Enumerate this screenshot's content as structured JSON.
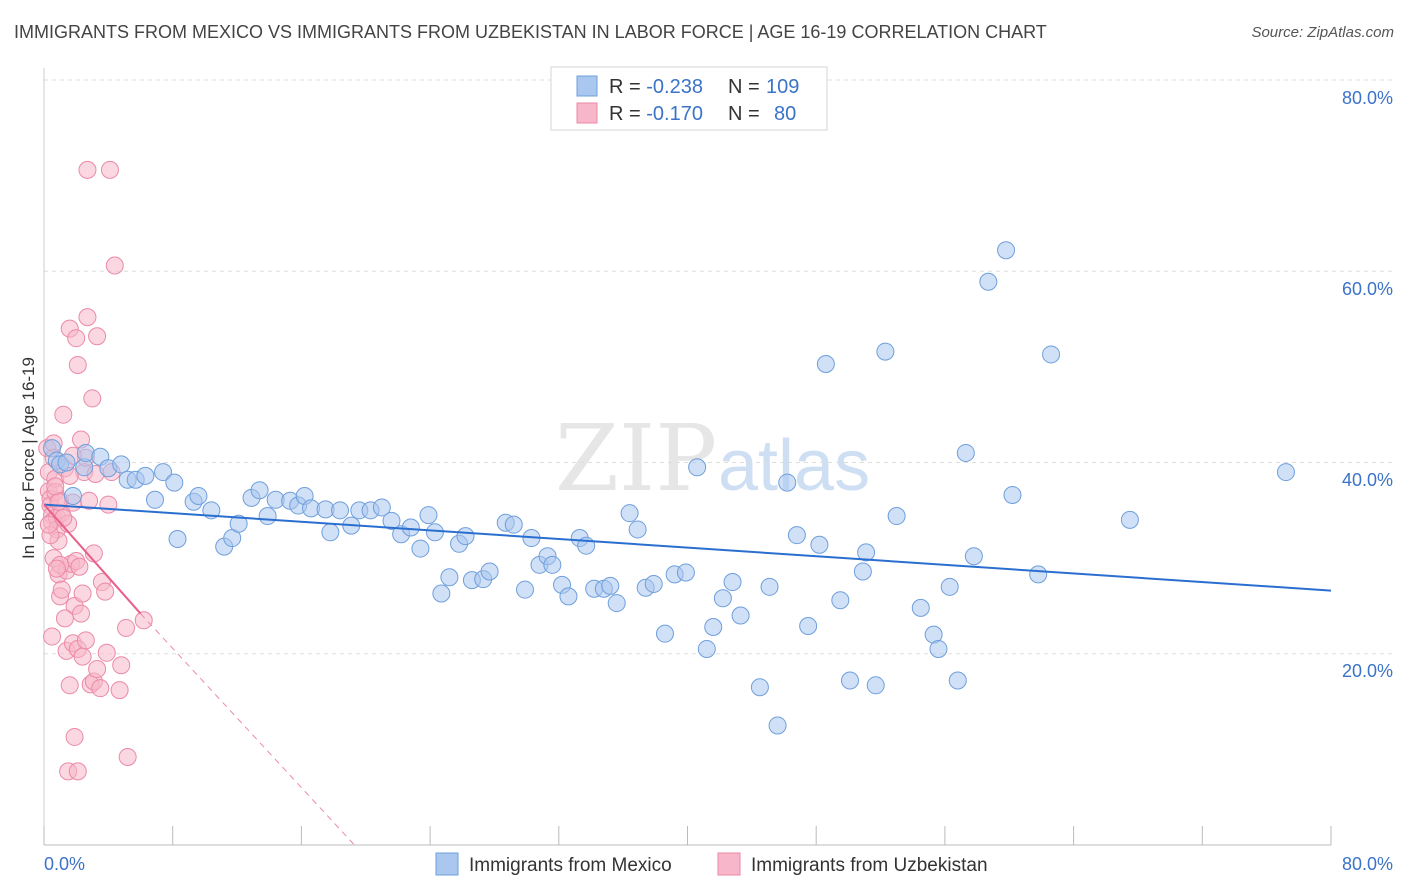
{
  "header": {
    "title": "IMMIGRANTS FROM MEXICO VS IMMIGRANTS FROM UZBEKISTAN IN LABOR FORCE | AGE 16-19 CORRELATION CHART",
    "source": "Source: ZipAtlas.com"
  },
  "watermark": {
    "zip": "ZIP",
    "atlas": "atlas"
  },
  "legend": {
    "rows": [
      {
        "r_label": "R = ",
        "r_value": "-0.238",
        "n_label": "N = ",
        "n_value": "109"
      },
      {
        "r_label": "R = ",
        "r_value": "-0.170",
        "n_label": "N = ",
        "n_value": "80"
      }
    ]
  },
  "colors": {
    "mexico_fill": "#a9c7ef",
    "mexico_stroke": "#6f9fdc",
    "mexico_line": "#2a6fd0",
    "uzbek_fill": "#f7b6c9",
    "uzbek_stroke": "#eb8aa8",
    "uzbek_line": "#e8608a",
    "grid": "#dddddd",
    "tick_text": "#3b73c8"
  },
  "chart_data": {
    "type": "scatter",
    "title": "IMMIGRANTS FROM MEXICO VS IMMIGRANTS FROM UZBEKISTAN IN LABOR FORCE | AGE 16-19 CORRELATION CHART",
    "xlabel": "",
    "ylabel": "In Labor Force | Age 16-19",
    "xlim": [
      0,
      80
    ],
    "ylim": [
      0,
      80
    ],
    "x_tick_labels": [
      "0.0%",
      "80.0%"
    ],
    "y_tick_labels": [
      "20.0%",
      "40.0%",
      "60.0%",
      "80.0%"
    ],
    "y_ticks": [
      20,
      40,
      60,
      80
    ],
    "grid": true,
    "legend_position": "bottom",
    "series": [
      {
        "name": "Immigrants from Mexico",
        "R": -0.238,
        "N": 109,
        "trend": [
          [
            0,
            35.6
          ],
          [
            80,
            26.6
          ]
        ],
        "points": [
          [
            0.5,
            41.5
          ],
          [
            0.8,
            40.2
          ],
          [
            1.0,
            39.8
          ],
          [
            1.4,
            40.0
          ],
          [
            1.8,
            36.5
          ],
          [
            2.5,
            39.5
          ],
          [
            2.6,
            41.0
          ],
          [
            3.5,
            40.6
          ],
          [
            4.0,
            39.4
          ],
          [
            4.8,
            39.8
          ],
          [
            5.2,
            38.2
          ],
          [
            5.7,
            38.2
          ],
          [
            6.3,
            38.6
          ],
          [
            6.9,
            36.1
          ],
          [
            7.4,
            39.0
          ],
          [
            8.1,
            37.9
          ],
          [
            8.3,
            32.0
          ],
          [
            9.3,
            35.9
          ],
          [
            9.6,
            36.5
          ],
          [
            10.4,
            35.0
          ],
          [
            11.2,
            31.2
          ],
          [
            11.7,
            32.1
          ],
          [
            12.1,
            33.6
          ],
          [
            12.9,
            36.3
          ],
          [
            13.4,
            37.1
          ],
          [
            13.9,
            34.4
          ],
          [
            14.4,
            36.1
          ],
          [
            15.3,
            36.0
          ],
          [
            15.8,
            35.5
          ],
          [
            16.2,
            36.5
          ],
          [
            16.6,
            35.2
          ],
          [
            17.5,
            35.1
          ],
          [
            17.8,
            32.7
          ],
          [
            18.4,
            35.0
          ],
          [
            19.1,
            33.4
          ],
          [
            19.6,
            35.0
          ],
          [
            20.3,
            35.0
          ],
          [
            21.0,
            35.3
          ],
          [
            21.6,
            33.9
          ],
          [
            22.2,
            32.5
          ],
          [
            22.8,
            33.2
          ],
          [
            23.4,
            31.0
          ],
          [
            23.9,
            34.5
          ],
          [
            24.3,
            32.7
          ],
          [
            24.7,
            26.3
          ],
          [
            25.2,
            28.0
          ],
          [
            25.8,
            31.5
          ],
          [
            26.2,
            32.3
          ],
          [
            26.6,
            27.7
          ],
          [
            27.3,
            27.8
          ],
          [
            27.7,
            28.6
          ],
          [
            28.7,
            33.7
          ],
          [
            29.2,
            33.5
          ],
          [
            29.9,
            26.7
          ],
          [
            30.3,
            32.1
          ],
          [
            30.8,
            29.3
          ],
          [
            31.3,
            30.2
          ],
          [
            31.6,
            29.3
          ],
          [
            32.2,
            27.2
          ],
          [
            32.6,
            26.0
          ],
          [
            33.3,
            32.1
          ],
          [
            33.7,
            31.3
          ],
          [
            34.2,
            26.8
          ],
          [
            34.8,
            26.8
          ],
          [
            35.2,
            27.1
          ],
          [
            35.6,
            25.3
          ],
          [
            36.4,
            34.7
          ],
          [
            36.9,
            33.0
          ],
          [
            37.4,
            26.9
          ],
          [
            37.9,
            27.3
          ],
          [
            38.6,
            22.1
          ],
          [
            39.2,
            28.3
          ],
          [
            39.9,
            28.5
          ],
          [
            40.6,
            39.5
          ],
          [
            41.2,
            20.5
          ],
          [
            41.6,
            22.8
          ],
          [
            42.2,
            25.8
          ],
          [
            42.8,
            27.5
          ],
          [
            43.3,
            24.0
          ],
          [
            44.5,
            16.5
          ],
          [
            45.1,
            27.0
          ],
          [
            45.6,
            12.5
          ],
          [
            46.2,
            37.9
          ],
          [
            46.8,
            32.4
          ],
          [
            47.5,
            22.9
          ],
          [
            48.2,
            31.4
          ],
          [
            48.6,
            50.3
          ],
          [
            49.5,
            25.6
          ],
          [
            50.1,
            17.2
          ],
          [
            50.9,
            28.6
          ],
          [
            51.1,
            30.6
          ],
          [
            51.7,
            16.7
          ],
          [
            52.3,
            51.6
          ],
          [
            53.0,
            34.4
          ],
          [
            54.5,
            24.8
          ],
          [
            55.3,
            22.0
          ],
          [
            55.6,
            20.5
          ],
          [
            56.3,
            27.0
          ],
          [
            56.8,
            17.2
          ],
          [
            57.3,
            41.0
          ],
          [
            57.8,
            30.2
          ],
          [
            58.7,
            58.9
          ],
          [
            59.8,
            62.2
          ],
          [
            60.2,
            36.6
          ],
          [
            61.8,
            28.3
          ],
          [
            62.6,
            51.3
          ],
          [
            67.5,
            34.0
          ],
          [
            77.2,
            39.0
          ]
        ]
      },
      {
        "name": "Immigrants from Uzbekistan",
        "R": -0.17,
        "N": 80,
        "trend": [
          [
            0,
            35.6
          ],
          [
            6,
            24.2
          ]
        ],
        "trend_extension": [
          [
            6,
            24.2
          ],
          [
            19.3,
            0
          ]
        ],
        "points": [
          [
            0.2,
            41.5
          ],
          [
            0.3,
            39.0
          ],
          [
            0.3,
            37.0
          ],
          [
            0.4,
            36.2
          ],
          [
            0.4,
            35.5
          ],
          [
            0.5,
            34.5
          ],
          [
            0.5,
            33.8
          ],
          [
            0.6,
            42.0
          ],
          [
            0.6,
            40.5
          ],
          [
            0.7,
            38.3
          ],
          [
            0.7,
            36.9
          ],
          [
            0.8,
            34.3
          ],
          [
            0.8,
            33.0
          ],
          [
            0.9,
            31.8
          ],
          [
            0.9,
            28.3
          ],
          [
            1.0,
            26.0
          ],
          [
            0.5,
            21.8
          ],
          [
            1.0,
            36.0
          ],
          [
            1.1,
            34.7
          ],
          [
            1.2,
            45.0
          ],
          [
            1.3,
            39.4
          ],
          [
            1.4,
            28.7
          ],
          [
            1.4,
            20.3
          ],
          [
            1.5,
            33.6
          ],
          [
            1.5,
            7.7
          ],
          [
            1.6,
            54.0
          ],
          [
            1.6,
            16.7
          ],
          [
            1.7,
            29.4
          ],
          [
            1.8,
            35.8
          ],
          [
            1.8,
            21.1
          ],
          [
            1.9,
            11.3
          ],
          [
            1.9,
            25.0
          ],
          [
            2.0,
            53.0
          ],
          [
            2.0,
            29.7
          ],
          [
            2.1,
            50.2
          ],
          [
            2.1,
            20.5
          ],
          [
            2.1,
            7.7
          ],
          [
            2.3,
            42.4
          ],
          [
            2.3,
            24.2
          ],
          [
            2.4,
            26.3
          ],
          [
            2.4,
            19.7
          ],
          [
            2.5,
            39.0
          ],
          [
            2.6,
            21.4
          ],
          [
            2.7,
            55.2
          ],
          [
            2.7,
            70.6
          ],
          [
            2.8,
            36.0
          ],
          [
            2.9,
            16.8
          ],
          [
            3.0,
            46.7
          ],
          [
            3.1,
            17.1
          ],
          [
            3.1,
            30.5
          ],
          [
            3.2,
            38.8
          ],
          [
            3.3,
            18.4
          ],
          [
            3.3,
            53.2
          ],
          [
            3.5,
            16.4
          ],
          [
            3.6,
            27.5
          ],
          [
            3.8,
            26.5
          ],
          [
            3.9,
            20.1
          ],
          [
            4.0,
            35.6
          ],
          [
            4.1,
            70.6
          ],
          [
            4.2,
            39.0
          ],
          [
            4.4,
            60.6
          ],
          [
            4.7,
            16.2
          ],
          [
            4.8,
            18.8
          ],
          [
            5.1,
            22.7
          ],
          [
            5.2,
            9.2
          ],
          [
            6.2,
            23.5
          ],
          [
            0.4,
            32.4
          ],
          [
            0.6,
            30.0
          ],
          [
            1.1,
            26.7
          ],
          [
            1.3,
            23.7
          ],
          [
            0.9,
            35.9
          ],
          [
            1.6,
            38.6
          ],
          [
            2.2,
            29.1
          ],
          [
            2.6,
            40.5
          ],
          [
            1.0,
            29.3
          ],
          [
            1.8,
            40.7
          ],
          [
            0.3,
            33.5
          ],
          [
            0.7,
            37.5
          ],
          [
            1.2,
            34.2
          ],
          [
            0.8,
            28.9
          ]
        ]
      }
    ]
  }
}
